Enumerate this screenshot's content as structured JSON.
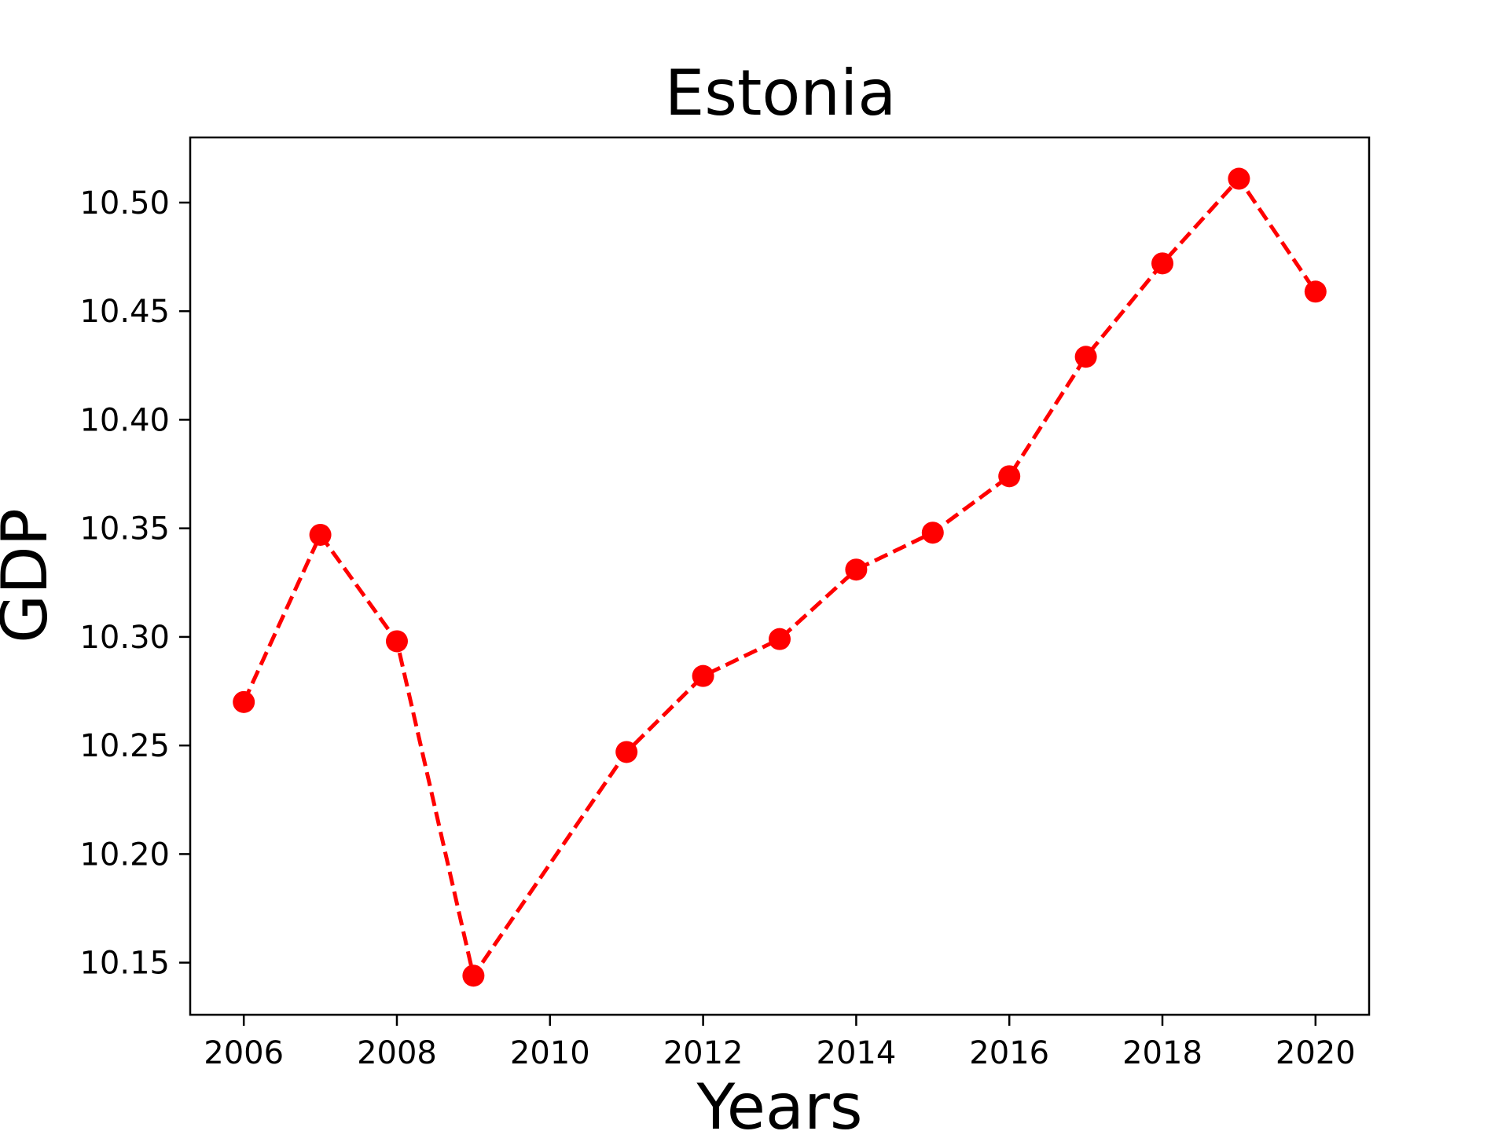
{
  "chart_data": {
    "type": "line",
    "title": "Estonia",
    "xlabel": "Years",
    "ylabel": "GDP",
    "x": [
      2006,
      2007,
      2008,
      2009,
      2011,
      2012,
      2013,
      2014,
      2015,
      2016,
      2017,
      2018,
      2019,
      2020
    ],
    "series": [
      {
        "values": [
          10.27,
          10.347,
          10.298,
          10.144,
          10.247,
          10.282,
          10.299,
          10.331,
          10.348,
          10.374,
          10.429,
          10.472,
          10.511,
          10.459
        ],
        "color": "#ff0000",
        "line_style": "dashed",
        "marker": "circle"
      }
    ],
    "xlim": [
      2005.3,
      2020.7
    ],
    "ylim": [
      10.126,
      10.53
    ],
    "xticks": [
      "2006",
      "2008",
      "2010",
      "2012",
      "2014",
      "2016",
      "2018",
      "2020"
    ],
    "yticks": [
      "10.15",
      "10.20",
      "10.25",
      "10.30",
      "10.35",
      "10.40",
      "10.45",
      "10.50"
    ],
    "grid": false,
    "legend": false
  }
}
